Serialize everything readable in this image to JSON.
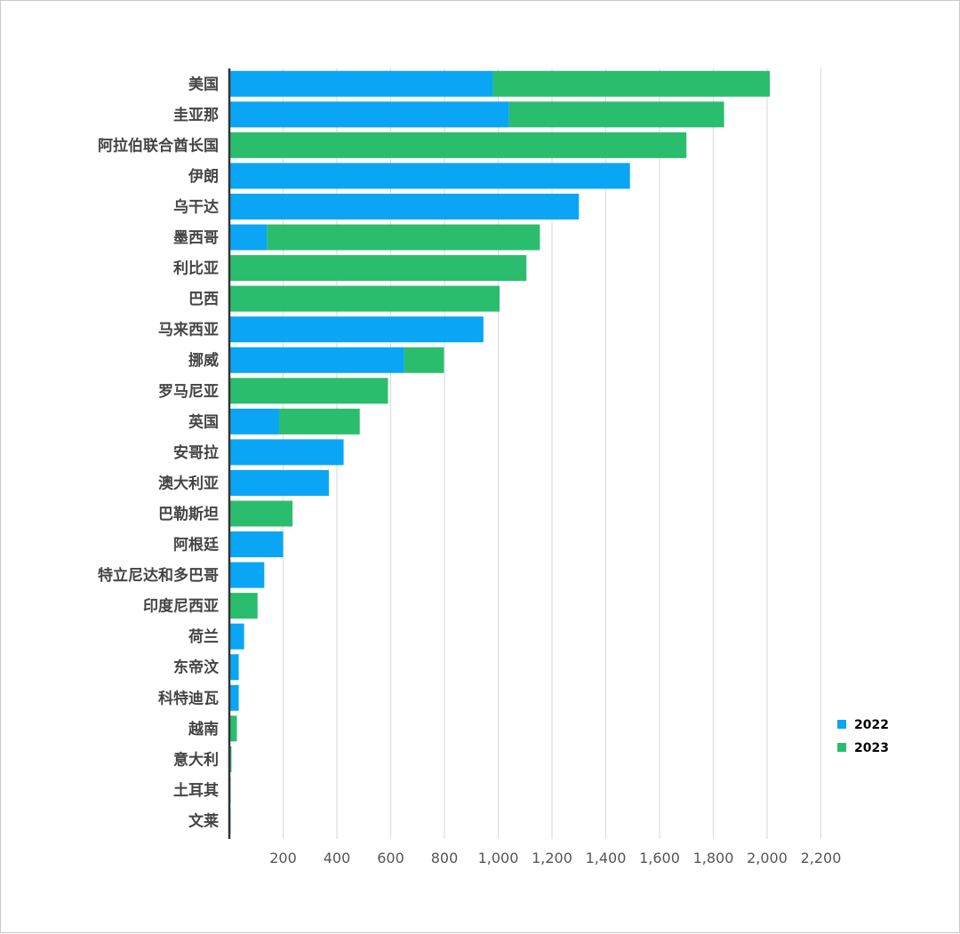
{
  "chart_data": {
    "type": "bar",
    "orientation": "horizontal",
    "stacked": true,
    "categories": [
      "美国",
      "圭亚那",
      "阿拉伯联合酋长国",
      "伊朗",
      "乌干达",
      "墨西哥",
      "利比亚",
      "巴西",
      "马来西亚",
      "挪威",
      "罗马尼亚",
      "英国",
      "安哥拉",
      "澳大利亚",
      "巴勒斯坦",
      "阿根廷",
      "特立尼达和多巴哥",
      "印度尼西亚",
      "荷兰",
      "东帝汶",
      "科特迪瓦",
      "越南",
      "意大利",
      "土耳其",
      "文莱"
    ],
    "series": [
      {
        "name": "2022",
        "color": "#0aa5f5",
        "values": [
          980,
          1040,
          0,
          1490,
          1300,
          140,
          0,
          0,
          945,
          650,
          0,
          185,
          425,
          370,
          0,
          200,
          130,
          0,
          55,
          35,
          35,
          0,
          0,
          5,
          5
        ]
      },
      {
        "name": "2023",
        "color": "#2bbd6e",
        "values": [
          1030,
          800,
          1700,
          0,
          0,
          1015,
          1105,
          1005,
          0,
          148,
          590,
          300,
          0,
          0,
          235,
          0,
          0,
          105,
          0,
          0,
          0,
          28,
          8,
          0,
          0
        ]
      }
    ],
    "xlim": [
      0,
      2200
    ],
    "x_ticks": [
      200,
      400,
      600,
      800,
      1000,
      1200,
      1400,
      1600,
      1800,
      2000,
      2200
    ],
    "x_tick_labels": [
      "200",
      "400",
      "600",
      "800",
      "1,000",
      "1,200",
      "1,400",
      "1,600",
      "1,800",
      "2,000",
      "2,200"
    ],
    "grid": true,
    "legend_position": "right"
  }
}
